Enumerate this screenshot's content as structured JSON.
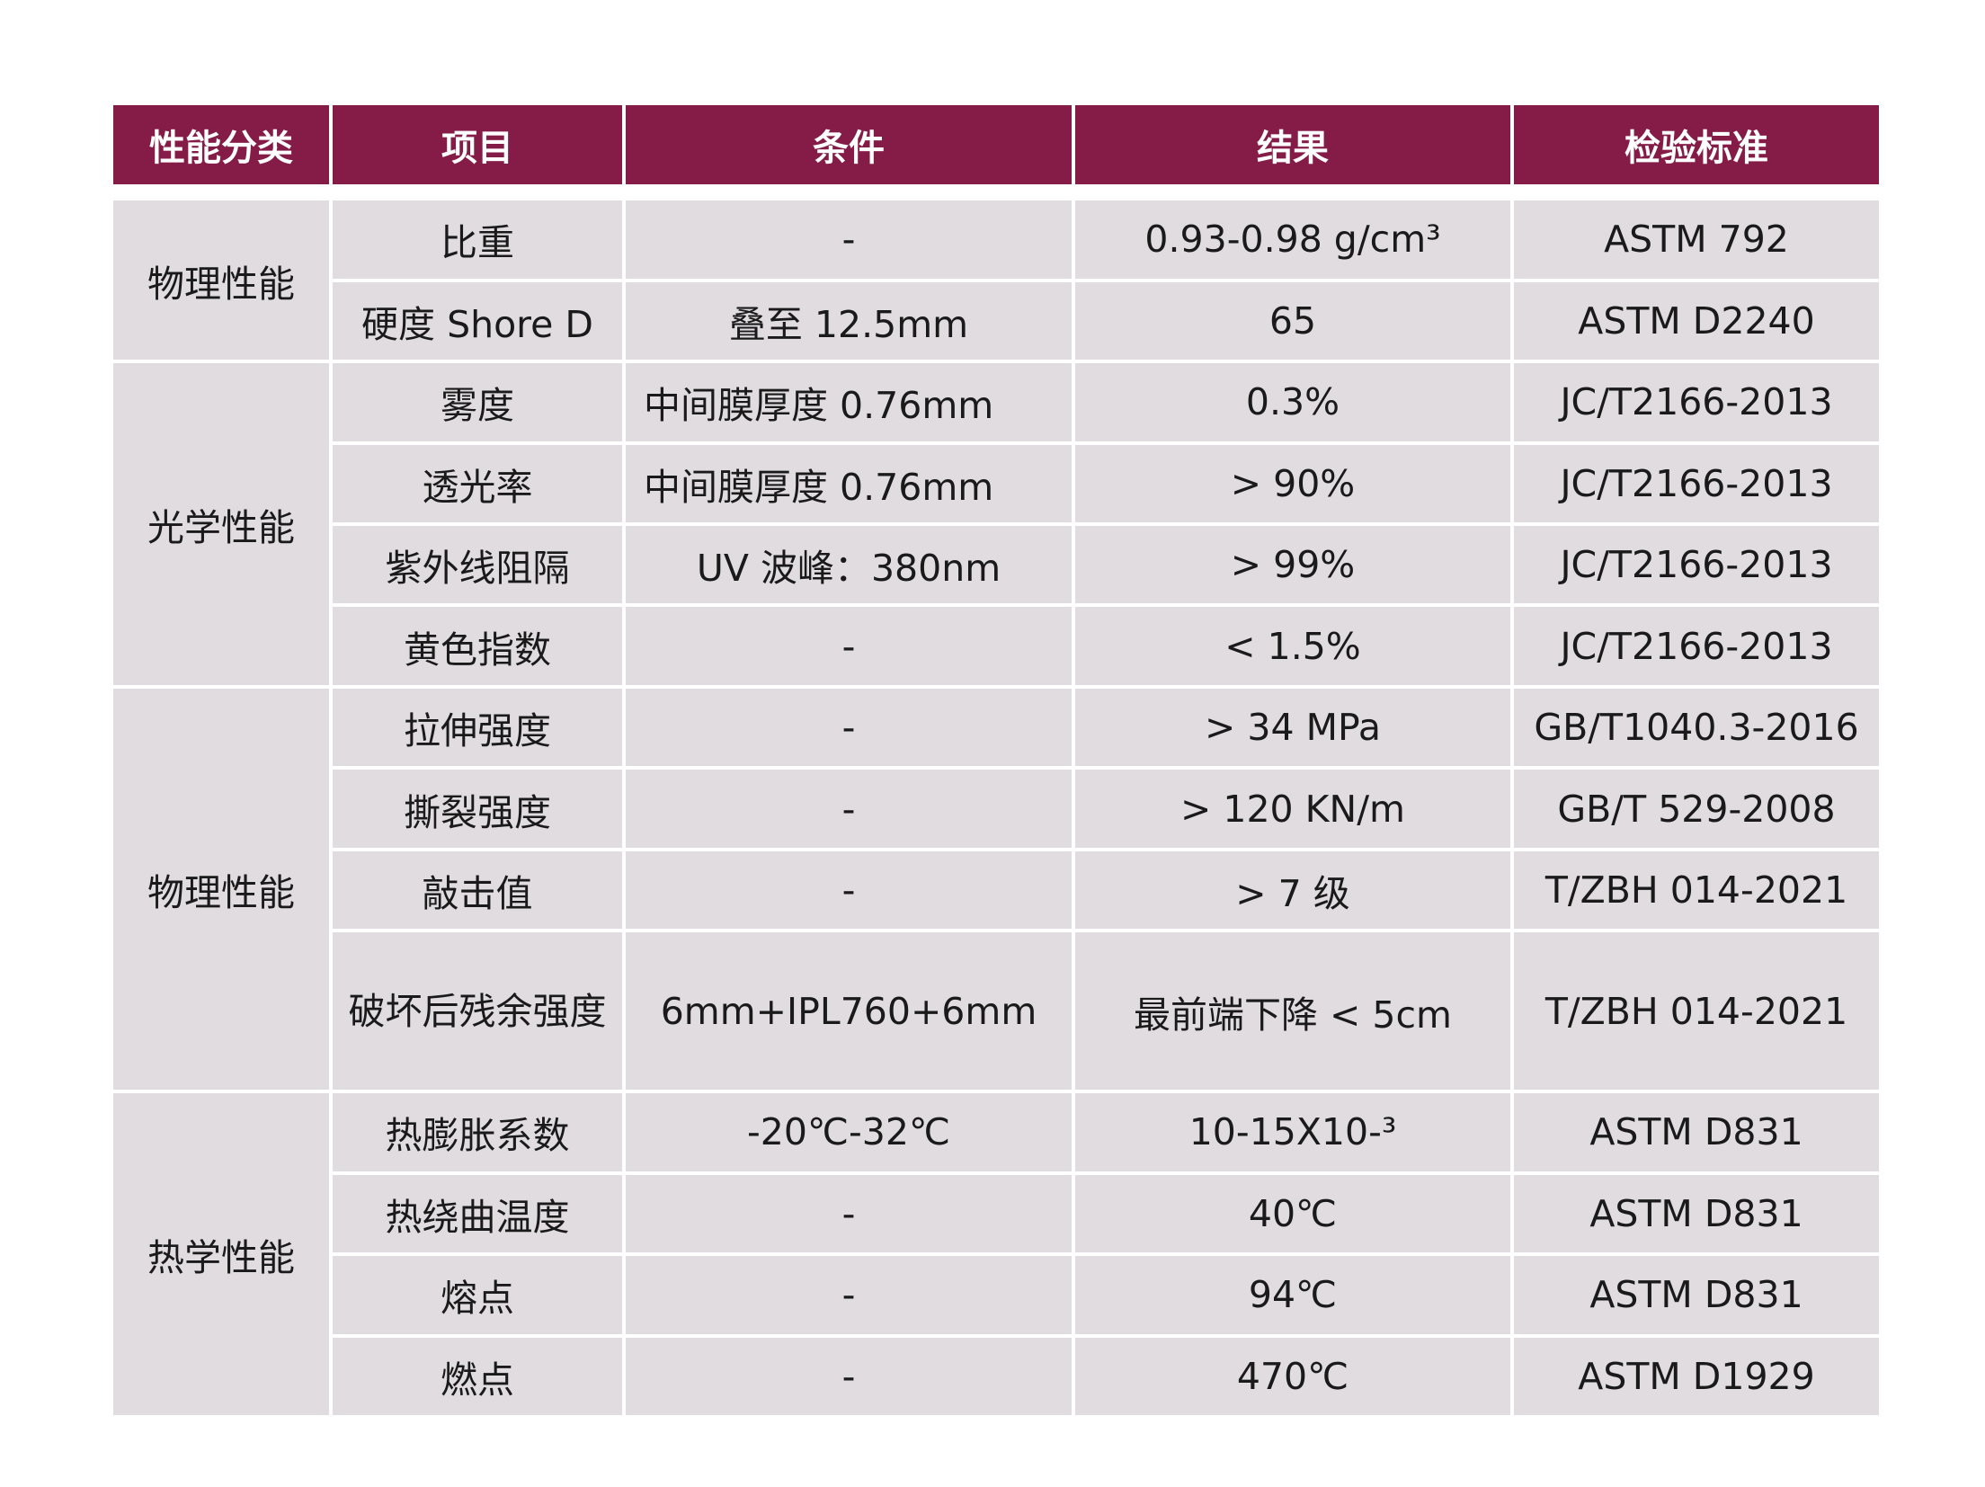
{
  "headers": [
    "性能分类",
    "项目",
    "条件",
    "结果",
    "检验标准"
  ],
  "groups": [
    {
      "category": "物理性能",
      "rows": [
        {
          "item": "比重",
          "condition": "-",
          "result": "0.93-0.98 g/cm³",
          "standard": "ASTM 792"
        },
        {
          "item": "硬度 Shore D",
          "condition": "叠至 12.5mm",
          "result": "65",
          "standard": "ASTM D2240"
        }
      ]
    },
    {
      "category": "光学性能",
      "rows": [
        {
          "item": "雾度",
          "condition": "中间膜厚度 0.76mm",
          "result": "0.3%",
          "standard": "JC/T2166-2013"
        },
        {
          "item": "透光率",
          "condition": "中间膜厚度 0.76mm",
          "result": "> 90%",
          "standard": "JC/T2166-2013"
        },
        {
          "item": "紫外线阻隔",
          "condition": "UV 波峰：380nm",
          "result": "> 99%",
          "standard": "JC/T2166-2013"
        },
        {
          "item": "黄色指数",
          "condition": "-",
          "result": "< 1.5%",
          "standard": "JC/T2166-2013"
        }
      ]
    },
    {
      "category": "物理性能",
      "rows": [
        {
          "item": "拉伸强度",
          "condition": "-",
          "result": "> 34 MPa",
          "standard": "GB/T1040.3-2016"
        },
        {
          "item": "撕裂强度",
          "condition": "-",
          "result": "> 120 KN/m",
          "standard": "GB/T 529-2008"
        },
        {
          "item": "敲击值",
          "condition": "-",
          "result": "> 7 级",
          "standard": "T/ZBH 014-2021"
        },
        {
          "item": "破坏后残余强度",
          "condition": "6mm+IPL760+6mm",
          "result": "最前端下降 < 5cm",
          "standard": "T/ZBH 014-2021"
        }
      ]
    },
    {
      "category": "热学性能",
      "rows": [
        {
          "item": "热膨胀系数",
          "condition": "-20℃-32℃",
          "result": "10-15X10-³",
          "standard": "ASTM D831"
        },
        {
          "item": "热绕曲温度",
          "condition": "-",
          "result": "40℃",
          "standard": "ASTM D831"
        },
        {
          "item": "熔点",
          "condition": "-",
          "result": "94℃",
          "standard": "ASTM D831"
        },
        {
          "item": "燃点",
          "condition": "-",
          "result": "470℃",
          "standard": "ASTM D1929"
        }
      ]
    }
  ]
}
